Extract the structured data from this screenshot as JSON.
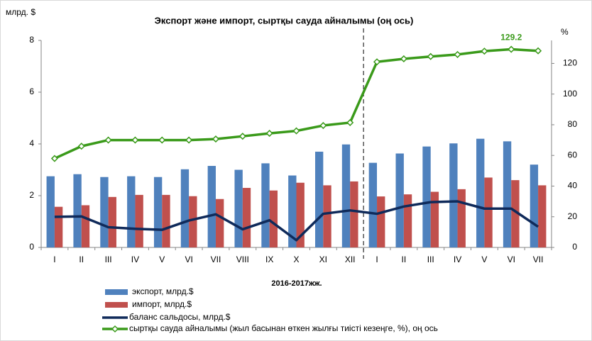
{
  "chart_data": {
    "type": "bar-line",
    "title": "Экспорт және импорт, сыртқы сауда айналымы (оң ось)",
    "y_label": "млрд. $",
    "y2_label": "%",
    "x_label": "2016-2017жж.",
    "categories": [
      "I",
      "II",
      "III",
      "IV",
      "V",
      "VI",
      "VII",
      "VIII",
      "IX",
      "X",
      "XI",
      "XII",
      "I",
      "II",
      "III",
      "IV",
      "V",
      "VI",
      "VII"
    ],
    "ylim": [
      0,
      8
    ],
    "yticks": [
      0,
      2,
      4,
      6,
      8
    ],
    "y2lim": [
      0,
      135
    ],
    "y2ticks": [
      0,
      20,
      40,
      60,
      80,
      100,
      120
    ],
    "series": [
      {
        "name": "экспорт, млрд.$",
        "type": "bar",
        "color": "#4f81bd",
        "values": [
          2.75,
          2.83,
          2.72,
          2.75,
          2.72,
          3.02,
          3.15,
          3.0,
          3.25,
          2.78,
          3.7,
          3.98,
          3.27,
          3.63,
          3.9,
          4.02,
          4.2,
          4.1,
          3.2
        ]
      },
      {
        "name": "импорт, млрд.$",
        "type": "bar",
        "color": "#c0504d",
        "values": [
          1.57,
          1.63,
          1.95,
          2.03,
          2.03,
          1.98,
          1.87,
          2.3,
          2.2,
          2.5,
          2.4,
          2.55,
          1.97,
          2.05,
          2.15,
          2.25,
          2.7,
          2.6,
          2.4
        ]
      },
      {
        "name": "баланс сальдосы, млрд.$",
        "type": "line",
        "color": "#0f2a5a",
        "values": [
          1.18,
          1.2,
          0.78,
          0.72,
          0.68,
          1.04,
          1.28,
          0.7,
          1.05,
          0.28,
          1.3,
          1.43,
          1.3,
          1.58,
          1.75,
          1.78,
          1.5,
          1.5,
          0.8
        ]
      },
      {
        "name": "сыртқы сауда айналымы (жыл басынан өткен жылғы тиісті кезеңге, %), оң ось",
        "type": "line",
        "axis": "y2",
        "color": "#3a9a1a",
        "values": [
          58,
          66,
          70,
          70,
          70,
          70,
          70.7,
          72.5,
          74.4,
          76,
          79.5,
          81.4,
          121,
          123,
          124.5,
          125.8,
          128,
          129.2,
          128.2
        ],
        "value_labels": [
          null,
          null,
          null,
          null,
          null,
          null,
          null,
          null,
          null,
          null,
          null,
          null,
          null,
          null,
          null,
          null,
          null,
          "129.2",
          null
        ]
      }
    ]
  }
}
